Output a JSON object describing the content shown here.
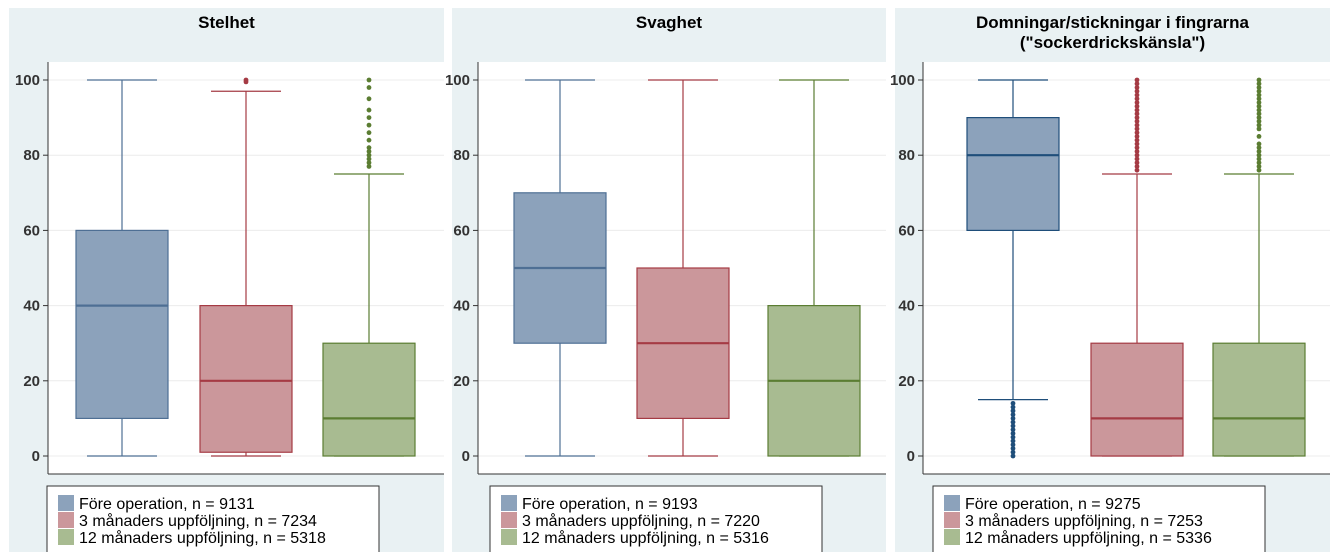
{
  "chart_data": [
    {
      "type": "box",
      "title": [
        "Stelhet"
      ],
      "ylim": [
        0,
        100
      ],
      "yticks": [
        0,
        20,
        40,
        60,
        80,
        100
      ],
      "grid": true,
      "legend_position": "bottom",
      "series": [
        {
          "name": "Före operation, n = 9131",
          "color": "#4e6f94",
          "fill": "#8ca2bb",
          "min": 0,
          "q1": 10,
          "median": 40,
          "q3": 60,
          "max": 100,
          "outliers": []
        },
        {
          "name": "3 månaders uppföljning, n = 7234",
          "color": "#a53b44",
          "fill": "#cb979b",
          "min": 0,
          "q1": 1,
          "median": 20,
          "q3": 40,
          "max": 97,
          "outliers": [
            99.5,
            100
          ]
        },
        {
          "name": "12 månaders uppföljning, n = 5318",
          "color": "#5b7d32",
          "fill": "#a8bb91",
          "min": 0,
          "q1": 0,
          "median": 10,
          "q3": 30,
          "max": 75,
          "outliers": [
            77,
            78,
            79,
            80,
            81,
            82,
            84,
            86,
            88,
            90,
            92,
            95,
            98,
            100
          ]
        }
      ]
    },
    {
      "type": "box",
      "title": [
        "Svaghet"
      ],
      "ylim": [
        0,
        100
      ],
      "yticks": [
        0,
        20,
        40,
        60,
        80,
        100
      ],
      "grid": true,
      "legend_position": "bottom",
      "series": [
        {
          "name": "Före operation, n = 9193",
          "color": "#4e6f94",
          "fill": "#8ca2bb",
          "min": 0,
          "q1": 30,
          "median": 50,
          "q3": 70,
          "max": 100,
          "outliers": []
        },
        {
          "name": "3 månaders uppföljning, n = 7220",
          "color": "#a53b44",
          "fill": "#cb979b",
          "min": 0,
          "q1": 10,
          "median": 30,
          "q3": 50,
          "max": 100,
          "outliers": []
        },
        {
          "name": "12 månaders uppföljning, n = 5316",
          "color": "#5b7d32",
          "fill": "#a8bb91",
          "min": 0,
          "q1": 0,
          "median": 20,
          "q3": 40,
          "max": 100,
          "outliers": []
        }
      ]
    },
    {
      "type": "box",
      "title": [
        "Domningar/stickningar i fingrarna",
        "(\"sockerdrickskänsla\")"
      ],
      "ylim": [
        0,
        100
      ],
      "yticks": [
        0,
        20,
        40,
        60,
        80,
        100
      ],
      "grid": true,
      "legend_position": "bottom",
      "series": [
        {
          "name": "Före operation, n = 9275",
          "color": "#1f4e7a",
          "fill": "#8ca2bb",
          "min": 15,
          "q1": 60,
          "median": 80,
          "q3": 90,
          "max": 100,
          "outliers": [
            0,
            1,
            2,
            3,
            4,
            5,
            6,
            7,
            8,
            9,
            10,
            11,
            12,
            13,
            14
          ]
        },
        {
          "name": "3 månaders uppföljning, n = 7253",
          "color": "#a53b44",
          "fill": "#cb979b",
          "min": 0,
          "q1": 0,
          "median": 10,
          "q3": 30,
          "max": 75,
          "outliers": [
            76,
            77,
            78,
            79,
            80,
            81,
            82,
            83,
            84,
            85,
            86,
            87,
            88,
            89,
            90,
            91,
            92,
            93,
            94,
            95,
            96,
            97,
            98,
            99,
            100
          ]
        },
        {
          "name": "12 månaders uppföljning, n = 5336",
          "color": "#5b7d32",
          "fill": "#a8bb91",
          "min": 0,
          "q1": 0,
          "median": 10,
          "q3": 30,
          "max": 75,
          "outliers": [
            76,
            77,
            78,
            79,
            80,
            81,
            82,
            83,
            85,
            87,
            88,
            89,
            90,
            91,
            92,
            93,
            94,
            95,
            96,
            97,
            98,
            99,
            100
          ]
        }
      ]
    }
  ]
}
